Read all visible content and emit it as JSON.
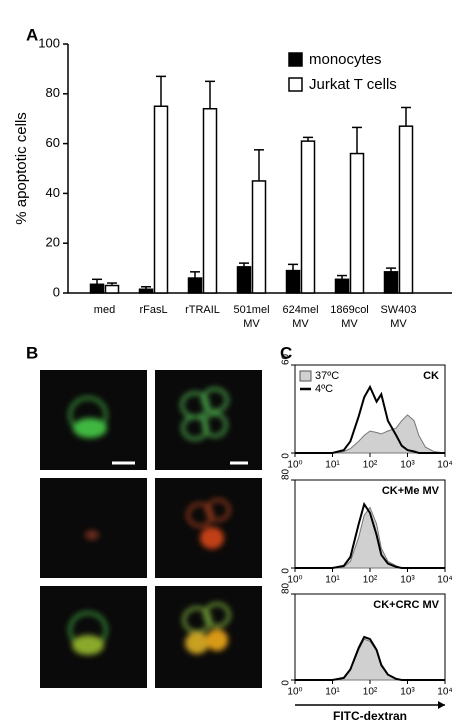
{
  "panel_labels": [
    "A",
    "B",
    "C"
  ],
  "chart_data": [
    {
      "type": "bar",
      "ylabel": "% apoptotic cells",
      "categories": [
        "med",
        "rFasL",
        "rTRAIL",
        "501mel MV",
        "624mel MV",
        "1869col MV",
        "SW403 MV"
      ],
      "series": [
        {
          "name": "monocytes",
          "color": "#000000",
          "values": [
            3.5,
            1.5,
            6,
            10.5,
            9,
            5.5,
            8.5
          ],
          "errors": [
            2,
            1,
            2.5,
            1.5,
            2.5,
            1.5,
            1.5
          ]
        },
        {
          "name": "Jurkat T cells",
          "color": "#ffffff",
          "values": [
            3,
            75,
            74,
            45,
            61,
            56,
            67
          ],
          "errors": [
            1,
            12,
            11,
            12.5,
            1.5,
            10.5,
            7.5
          ]
        }
      ],
      "ylim": [
        0,
        100
      ],
      "yticks": [
        0,
        20,
        40,
        60,
        80,
        100
      ],
      "legend": "upper right"
    },
    {
      "type": "line",
      "title": "CK",
      "log_x": true,
      "legend": "upper left",
      "x": [
        1,
        5,
        10,
        20,
        30,
        50,
        70,
        100,
        150,
        200,
        300,
        500,
        700,
        1000,
        1500,
        2000,
        3000,
        5000,
        10000
      ],
      "series": [
        {
          "name": "37ºC",
          "color": "#d0d0d0",
          "values": [
            0,
            0,
            0,
            1,
            3,
            8,
            12,
            15,
            14,
            13,
            15,
            17,
            22,
            26,
            22,
            12,
            4,
            1,
            0
          ]
        },
        {
          "name": "4ºC",
          "color": "#000000",
          "values": [
            0,
            0,
            0,
            2,
            8,
            25,
            38,
            45,
            35,
            40,
            22,
            12,
            5,
            2,
            1,
            0,
            0,
            0,
            0
          ]
        }
      ],
      "xlim": [
        1,
        10000
      ],
      "xticks": [
        {
          "value": 1,
          "label": "10⁰"
        },
        {
          "value": 10,
          "label": "10¹"
        },
        {
          "value": 100,
          "label": "10²"
        },
        {
          "value": 1000,
          "label": "10³"
        },
        {
          "value": 10000,
          "label": "10⁴"
        }
      ],
      "ylim": [
        0,
        60
      ],
      "yticks": [
        0,
        60
      ]
    },
    {
      "type": "line",
      "title": "CK+Me MV",
      "log_x": true,
      "x": [
        1,
        5,
        10,
        20,
        30,
        50,
        70,
        100,
        150,
        200,
        300,
        500,
        700,
        1000,
        1500,
        2000,
        3000,
        5000,
        10000
      ],
      "series": [
        {
          "color": "#d0d0d0",
          "values": [
            0,
            0,
            0,
            1,
            6,
            28,
            48,
            55,
            40,
            18,
            6,
            2,
            0,
            0,
            0,
            0,
            0,
            0,
            0
          ]
        },
        {
          "color": "#000000",
          "values": [
            0,
            0,
            0,
            2,
            10,
            40,
            58,
            50,
            30,
            12,
            4,
            1,
            0,
            0,
            0,
            0,
            0,
            0,
            0
          ]
        }
      ],
      "xlim": [
        1,
        10000
      ],
      "xticks": [
        {
          "value": 1,
          "label": "10⁰"
        },
        {
          "value": 10,
          "label": "10¹"
        },
        {
          "value": 100,
          "label": "10²"
        },
        {
          "value": 1000,
          "label": "10³"
        },
        {
          "value": 10000,
          "label": "10⁴"
        }
      ],
      "ylim": [
        0,
        80
      ],
      "yticks": [
        0,
        80
      ]
    },
    {
      "type": "line",
      "title": "CK+CRC MV",
      "log_x": true,
      "xlabel": "FITC-dextran",
      "x": [
        1,
        5,
        10,
        20,
        30,
        50,
        70,
        100,
        150,
        200,
        300,
        500,
        700,
        1000,
        1500,
        2000,
        3000,
        5000,
        10000
      ],
      "series": [
        {
          "color": "#d0d0d0",
          "values": [
            0,
            0,
            0,
            2,
            9,
            28,
            38,
            36,
            27,
            13,
            5,
            1,
            0,
            0,
            0,
            0,
            0,
            0,
            0
          ]
        },
        {
          "color": "#000000",
          "values": [
            0,
            0,
            0,
            2,
            10,
            30,
            40,
            38,
            28,
            14,
            5,
            1,
            0,
            0,
            0,
            0,
            0,
            0,
            0
          ]
        }
      ],
      "xlim": [
        1,
        10000
      ],
      "xticks": [
        {
          "value": 1,
          "label": "10⁰"
        },
        {
          "value": 10,
          "label": "10¹"
        },
        {
          "value": 100,
          "label": "10²"
        },
        {
          "value": 1000,
          "label": "10³"
        },
        {
          "value": 10000,
          "label": "10⁴"
        }
      ],
      "ylim": [
        0,
        80
      ],
      "yticks": [
        0,
        80
      ]
    }
  ]
}
